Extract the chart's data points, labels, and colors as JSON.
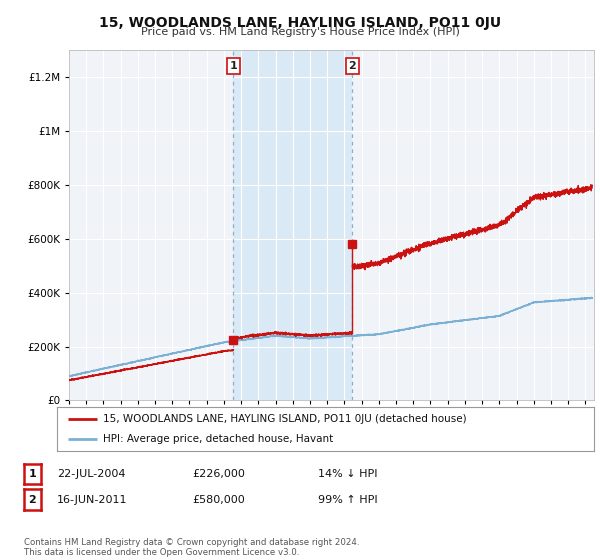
{
  "title": "15, WOODLANDS LANE, HAYLING ISLAND, PO11 0JU",
  "subtitle": "Price paid vs. HM Land Registry's House Price Index (HPI)",
  "ylim": [
    0,
    1300000
  ],
  "yticks": [
    0,
    200000,
    400000,
    600000,
    800000,
    1000000,
    1200000
  ],
  "ytick_labels": [
    "£0",
    "£200K",
    "£400K",
    "£600K",
    "£800K",
    "£1M",
    "£1.2M"
  ],
  "background_color": "#ffffff",
  "plot_bg_color": "#f0f4f8",
  "grid_color": "#ffffff",
  "hpi_color": "#7bafd4",
  "price_color": "#cc1111",
  "sale1_year": 2004.55,
  "sale1_price": 226000,
  "sale2_year": 2011.46,
  "sale2_price": 580000,
  "shade_color": "#d6e8f5",
  "vline_color": "#8ab0cc",
  "legend_line1": "15, WOODLANDS LANE, HAYLING ISLAND, PO11 0JU (detached house)",
  "legend_line2": "HPI: Average price, detached house, Havant",
  "table_row1": [
    "1",
    "22-JUL-2004",
    "£226,000",
    "14% ↓ HPI"
  ],
  "table_row2": [
    "2",
    "16-JUN-2011",
    "£580,000",
    "99% ↑ HPI"
  ],
  "footer": "Contains HM Land Registry data © Crown copyright and database right 2024.\nThis data is licensed under the Open Government Licence v3.0.",
  "xmin": 1995,
  "xmax": 2025.5
}
